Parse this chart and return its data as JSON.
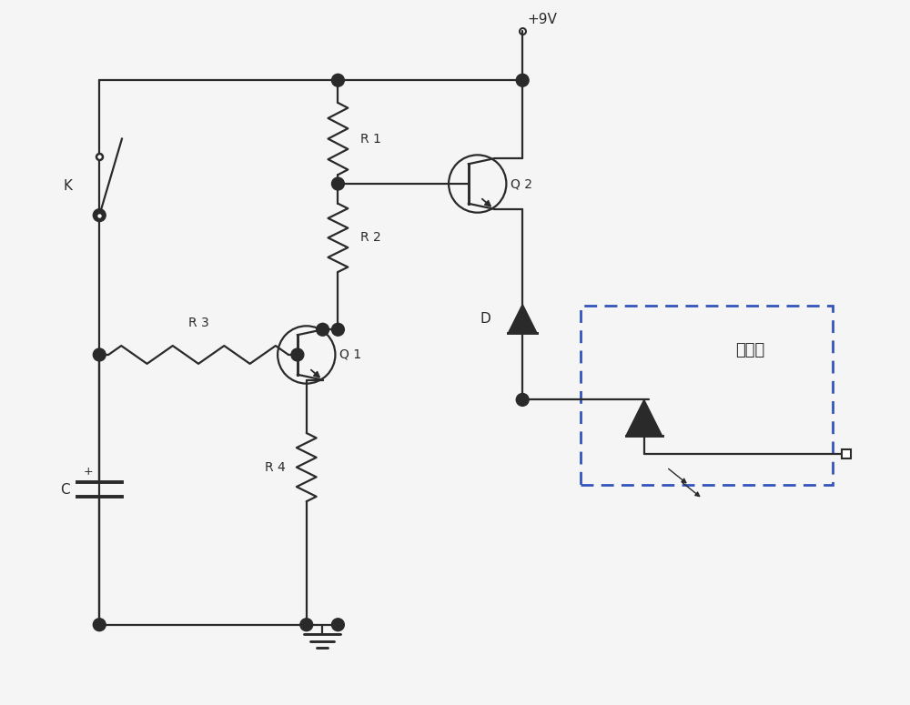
{
  "bg_color": "#f5f5f5",
  "lc": "#2a2a2a",
  "blue_dash": "#3355bb",
  "label_K": "K",
  "label_R1": "R 1",
  "label_R2": "R 2",
  "label_R3": "R 3",
  "label_R4": "R 4",
  "label_Q1": "Q 1",
  "label_Q2": "Q 2",
  "label_D": "D",
  "label_C": "C",
  "label_9V": "+9V",
  "label_sensor": "传感器",
  "figsize": [
    10.0,
    7.75
  ],
  "dpi": 100
}
